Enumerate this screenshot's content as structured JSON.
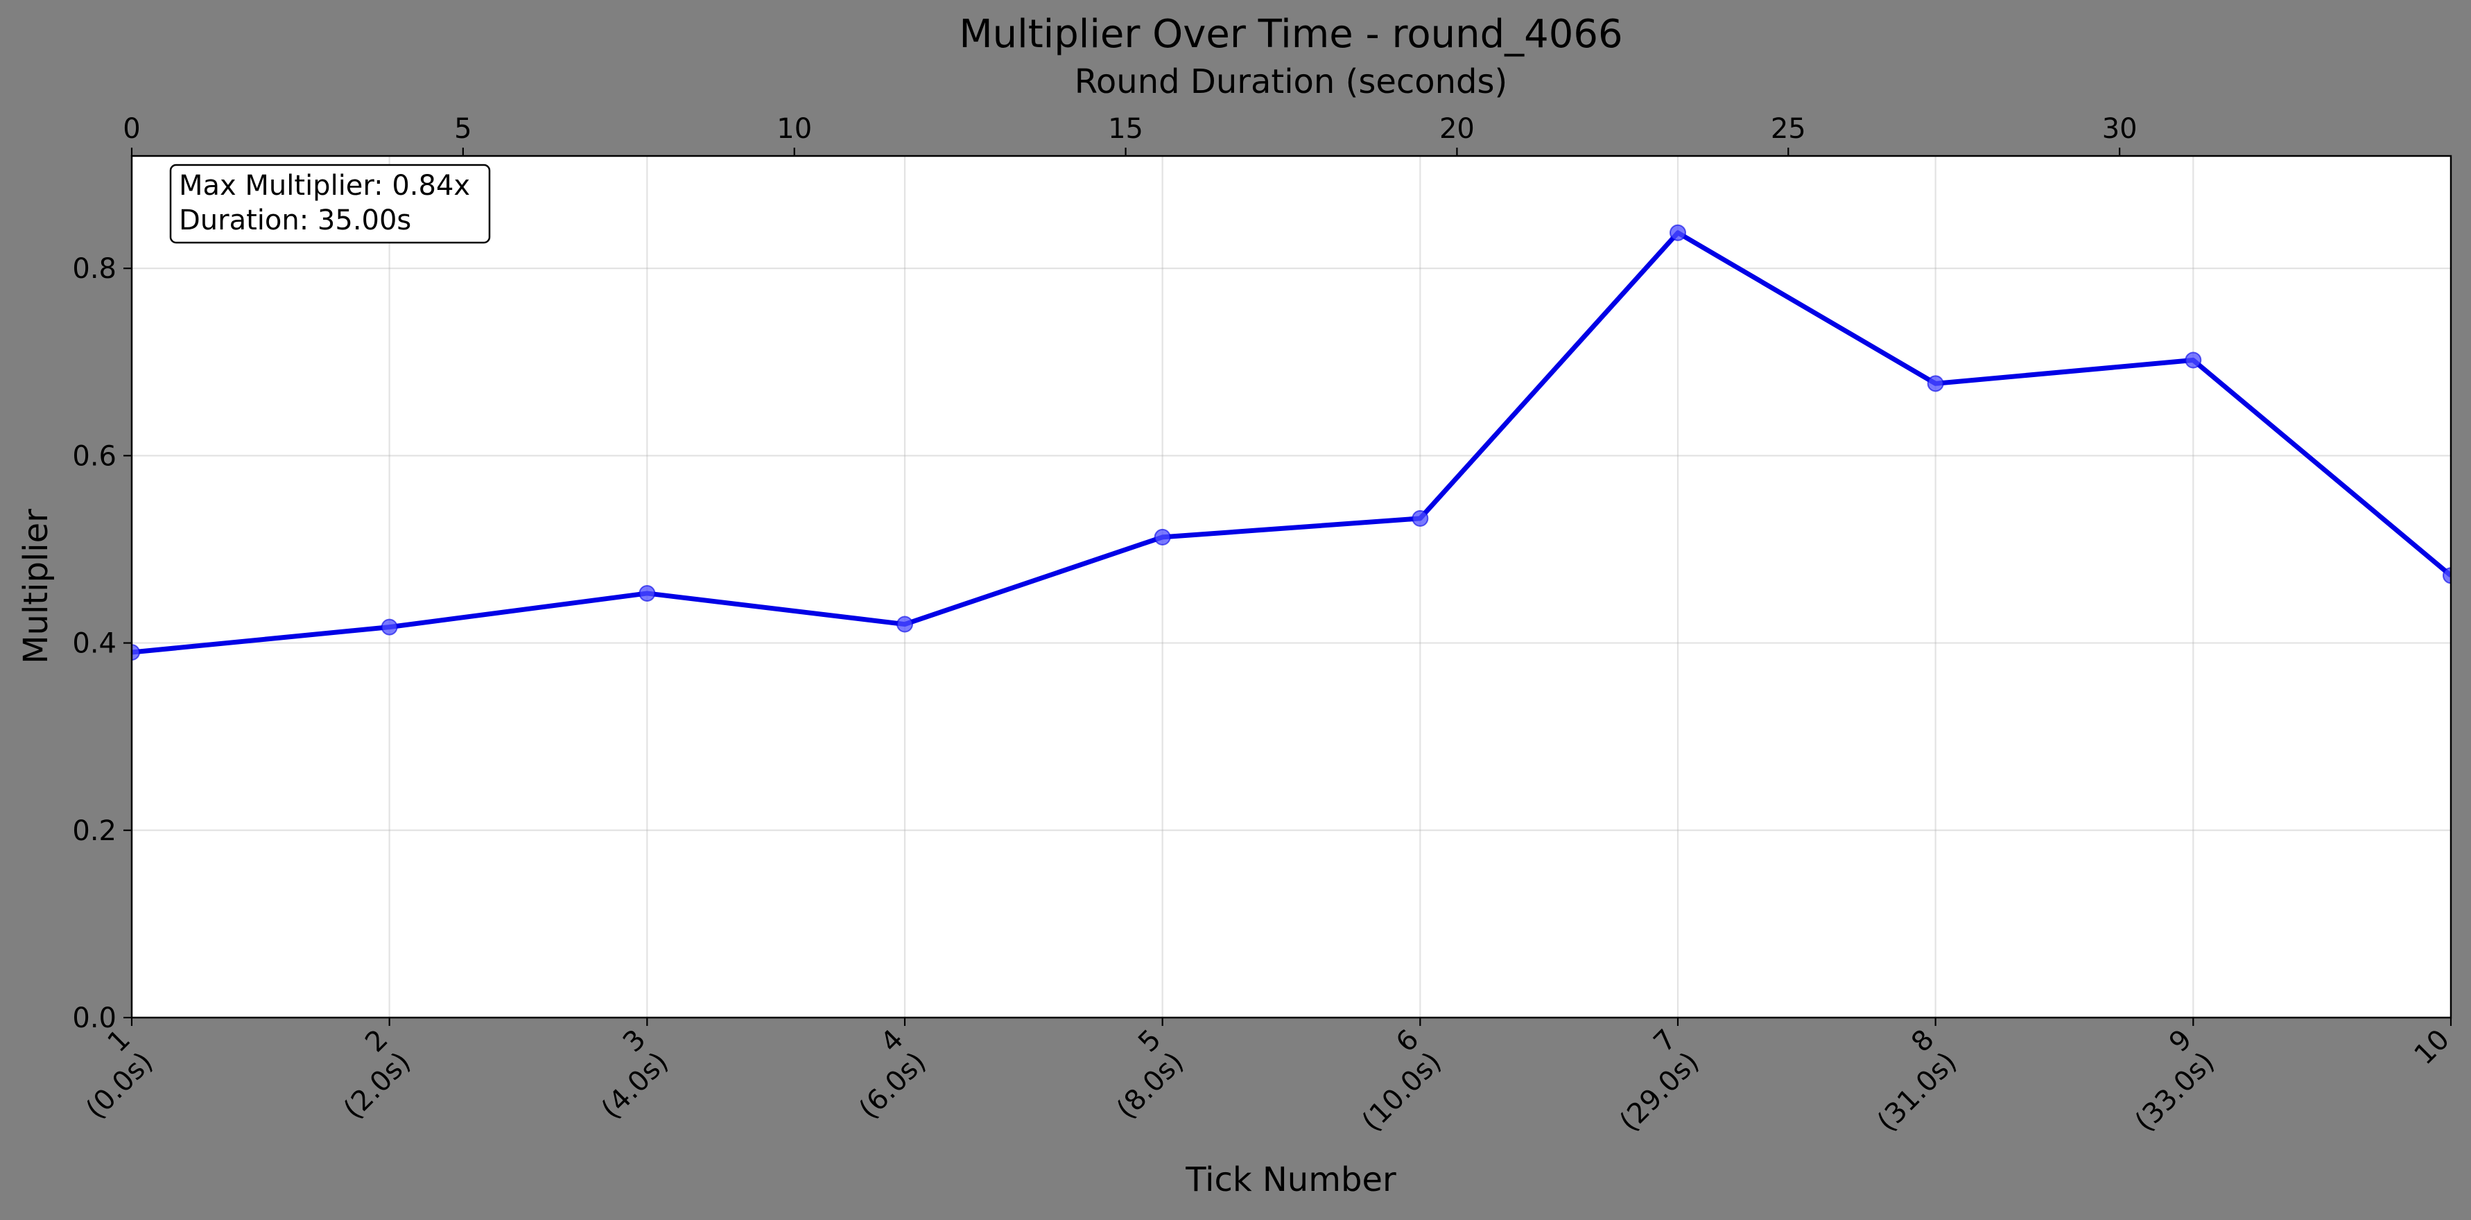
{
  "chart_data": {
    "type": "line",
    "title": "Multiplier Over Time - round_4066",
    "xlabel": "Tick Number",
    "ylabel": "Multiplier",
    "secondary_xlabel": "Round Duration (seconds)",
    "x": [
      1,
      2,
      3,
      4,
      5,
      6,
      7,
      8,
      9,
      10
    ],
    "x_tick_labels": [
      [
        "1",
        "(0.0s)"
      ],
      [
        "2",
        "(2.0s)"
      ],
      [
        "3",
        "(4.0s)"
      ],
      [
        "4",
        "(6.0s)"
      ],
      [
        "5",
        "(8.0s)"
      ],
      [
        "6",
        "(10.0s)"
      ],
      [
        "7",
        "(29.0s)"
      ],
      [
        "8",
        "(31.0s)"
      ],
      [
        "9",
        "(33.0s)"
      ],
      [
        "10",
        ""
      ]
    ],
    "series": [
      {
        "values": [
          0.39,
          0.417,
          0.453,
          0.42,
          0.513,
          0.533,
          0.838,
          0.677,
          0.702,
          0.472
        ]
      }
    ],
    "xlim": [
      1,
      10
    ],
    "ylim": [
      0,
      0.92
    ],
    "y_ticks": [
      0.0,
      0.2,
      0.4,
      0.6,
      0.8
    ],
    "y_tick_labels": [
      "0.0",
      "0.2",
      "0.4",
      "0.6",
      "0.8"
    ],
    "secondary_x_ticks": [
      0,
      5,
      10,
      15,
      20,
      25,
      30
    ],
    "secondary_x_tick_labels": [
      "0",
      "5",
      "10",
      "15",
      "20",
      "25",
      "30"
    ],
    "secondary_xlim": [
      0,
      35
    ],
    "grid": true,
    "annotation_lines": [
      "Max Multiplier: 0.84x",
      "Duration: 35.00s"
    ],
    "line_color": "#0000e6",
    "marker_color": "#4d4dff",
    "background_color": "#808080",
    "plot_background": "#ffffff"
  }
}
